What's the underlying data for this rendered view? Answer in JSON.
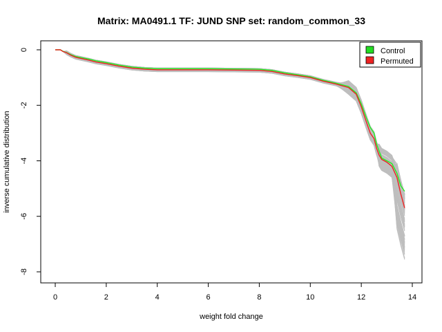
{
  "chart_data": {
    "type": "line",
    "title": "Matrix: MA0491.1 TF: JUND SNP set: random_common_33",
    "xlabel": "weight fold change",
    "ylabel": "inverse cumulative distribution",
    "xlim": [
      0,
      14
    ],
    "ylim": [
      -8,
      0
    ],
    "x_ticks": [
      "0",
      "2",
      "4",
      "6",
      "8",
      "10",
      "12",
      "14"
    ],
    "y_ticks": [
      "0",
      "-2",
      "-4",
      "-6",
      "-8"
    ],
    "grid": false,
    "legend_position": "top-right",
    "legend": [
      {
        "label": "Control",
        "color": "#22dd22"
      },
      {
        "label": "Permuted",
        "color": "#ee2222"
      }
    ],
    "series": [
      {
        "name": "Control",
        "color": "#22ee22",
        "x": [
          0,
          0.2,
          0.3,
          0.45,
          0.6,
          0.8,
          1.0,
          1.3,
          1.6,
          2.0,
          2.5,
          3.0,
          3.5,
          4.0,
          5.0,
          6.0,
          7.0,
          8.0,
          8.5,
          9.0,
          9.5,
          10.0,
          10.5,
          11.0,
          11.5,
          11.8,
          12.0,
          12.2,
          12.35,
          12.5,
          12.6,
          12.7,
          12.8,
          13.0,
          13.2,
          13.4,
          13.55,
          13.7
        ],
        "y": [
          0,
          0,
          -0.05,
          -0.1,
          -0.17,
          -0.24,
          -0.28,
          -0.33,
          -0.4,
          -0.46,
          -0.55,
          -0.62,
          -0.66,
          -0.68,
          -0.68,
          -0.68,
          -0.69,
          -0.7,
          -0.74,
          -0.83,
          -0.9,
          -0.97,
          -1.1,
          -1.2,
          -1.32,
          -1.55,
          -1.95,
          -2.45,
          -2.8,
          -3.0,
          -3.4,
          -3.65,
          -3.9,
          -4.0,
          -4.1,
          -4.45,
          -4.9,
          -5.1
        ]
      },
      {
        "name": "Permuted",
        "color": "#ee2222",
        "x": [
          0,
          0.2,
          0.3,
          0.45,
          0.6,
          0.8,
          1.0,
          1.3,
          1.6,
          2.0,
          2.5,
          3.0,
          3.5,
          4.0,
          5.0,
          6.0,
          7.0,
          8.0,
          8.5,
          9.0,
          9.5,
          10.0,
          10.5,
          11.0,
          11.5,
          11.8,
          12.0,
          12.2,
          12.35,
          12.5,
          12.6,
          12.7,
          12.8,
          13.0,
          13.2,
          13.4,
          13.55,
          13.7
        ],
        "y": [
          0,
          0,
          -0.06,
          -0.11,
          -0.19,
          -0.27,
          -0.31,
          -0.37,
          -0.44,
          -0.5,
          -0.59,
          -0.66,
          -0.7,
          -0.72,
          -0.72,
          -0.72,
          -0.73,
          -0.74,
          -0.78,
          -0.87,
          -0.93,
          -1.0,
          -1.13,
          -1.23,
          -1.36,
          -1.6,
          -2.05,
          -2.6,
          -3.0,
          -3.2,
          -3.55,
          -3.8,
          -3.95,
          -4.05,
          -4.2,
          -4.6,
          -5.2,
          -5.7
        ]
      }
    ],
    "background_series_count": 100,
    "background_color": "#bebebe"
  }
}
